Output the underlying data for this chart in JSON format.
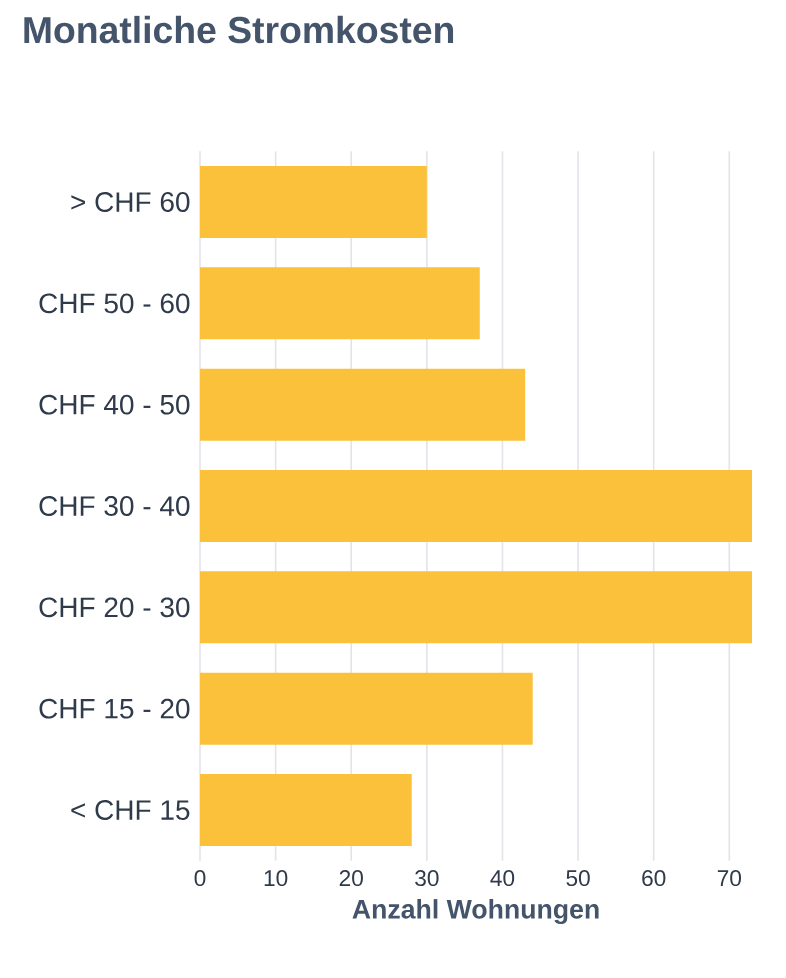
{
  "chart_data": {
    "type": "bar",
    "orientation": "horizontal",
    "title": "Monatliche Stromkosten",
    "xlabel": "Anzahl Wohnungen",
    "categories": [
      "> CHF 60",
      "CHF 50 - 60",
      "CHF 40 - 50",
      "CHF 30 - 40",
      "CHF 20 - 30",
      "CHF 15 - 20",
      "< CHF 15"
    ],
    "values": [
      30,
      37,
      43,
      73,
      73,
      44,
      28
    ],
    "color": "#fbc13a",
    "xlim": [
      0,
      73
    ],
    "xticks": [
      0,
      10,
      20,
      30,
      40,
      50,
      60,
      70
    ],
    "grid": "x"
  }
}
